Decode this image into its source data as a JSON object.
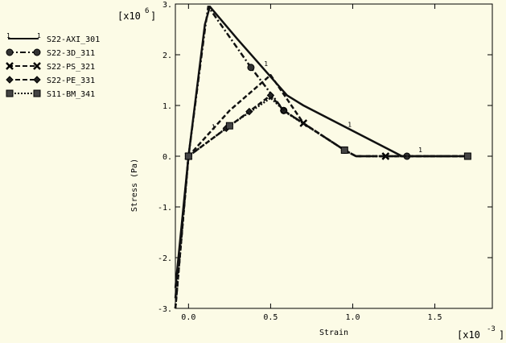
{
  "chart_data": {
    "type": "line",
    "xlabel": "Strain",
    "ylabel": "Stress (Pa)",
    "x_multiplier": {
      "base": "[x10",
      "exp": "-3",
      "close": "]"
    },
    "y_multiplier": {
      "base": "[x10",
      "exp": "6",
      "close": "]"
    },
    "xlim": [
      -0.08,
      1.85
    ],
    "ylim": [
      -3,
      3
    ],
    "x_ticks": [
      0.0,
      0.5,
      1.0,
      1.5
    ],
    "x_tick_labels": [
      "0.0",
      "0.5",
      "1.0",
      "1.5"
    ],
    "y_ticks": [
      3,
      2,
      1,
      0,
      -1,
      -2,
      -3
    ],
    "y_tick_labels": [
      "3.",
      "2.",
      "1.",
      "0.",
      "-1.",
      "-2.",
      "-3."
    ],
    "legend_position": "left",
    "series": [
      {
        "name": "S22-AXI_301",
        "style": "solid",
        "marker": "none",
        "label": "1",
        "label_points": [
          [
            0.45,
            1.75
          ],
          [
            0.13,
            0.5
          ],
          [
            0.96,
            0.55
          ],
          [
            1.39,
            0.05
          ]
        ],
        "x": [
          -0.08,
          0.0,
          0.1,
          0.13,
          0.3,
          0.6,
          0.7,
          1.3,
          1.7
        ],
        "y": [
          -2.6,
          0.0,
          2.6,
          2.95,
          2.3,
          1.2,
          1.0,
          0.0,
          0.0
        ]
      },
      {
        "name": "S22-3D_311",
        "style": "dashdot",
        "marker": "circle",
        "x": [
          -0.08,
          0.0,
          0.1,
          0.12,
          0.38,
          0.58,
          0.95,
          1.02,
          1.33,
          1.7
        ],
        "y": [
          -2.8,
          0.0,
          2.5,
          2.95,
          1.75,
          0.9,
          0.12,
          0.0,
          0.0,
          0.0
        ],
        "markers_x": [
          0.0,
          0.38,
          0.58,
          0.95,
          1.33
        ],
        "markers_y": [
          0.0,
          1.75,
          0.9,
          0.12,
          0.0
        ]
      },
      {
        "name": "S22-PS_321",
        "style": "dashed",
        "marker": "x",
        "x": [
          -0.08,
          0.0,
          0.25,
          0.5,
          0.7,
          0.95,
          1.02,
          1.7
        ],
        "y": [
          -3.0,
          0.0,
          0.9,
          1.6,
          0.65,
          0.12,
          0.0,
          0.0
        ],
        "markers_x": [
          0.0,
          0.7,
          1.2
        ],
        "markers_y": [
          0.0,
          0.65,
          0.0
        ]
      },
      {
        "name": "S22-PE_331",
        "style": "dashed",
        "marker": "diamond",
        "x": [
          -0.08,
          0.0,
          0.23,
          0.37,
          0.5,
          0.58,
          0.95,
          1.02,
          1.7
        ],
        "y": [
          -3.0,
          0.0,
          0.55,
          0.88,
          1.2,
          0.9,
          0.12,
          0.0,
          0.0
        ],
        "markers_x": [
          0.23,
          0.37,
          0.5,
          0.58
        ],
        "markers_y": [
          0.55,
          0.88,
          1.2,
          0.9
        ]
      },
      {
        "name": "S11-BM_341",
        "style": "dotted",
        "marker": "square",
        "x": [
          -0.08,
          0.0,
          0.25,
          0.5,
          0.6,
          0.95,
          1.02,
          1.7
        ],
        "y": [
          -3.0,
          0.0,
          0.6,
          1.15,
          0.85,
          0.12,
          0.0,
          0.0
        ],
        "markers_x": [
          0.0,
          0.25,
          0.95,
          1.7
        ],
        "markers_y": [
          0.0,
          0.6,
          0.12,
          0.0
        ]
      }
    ]
  }
}
